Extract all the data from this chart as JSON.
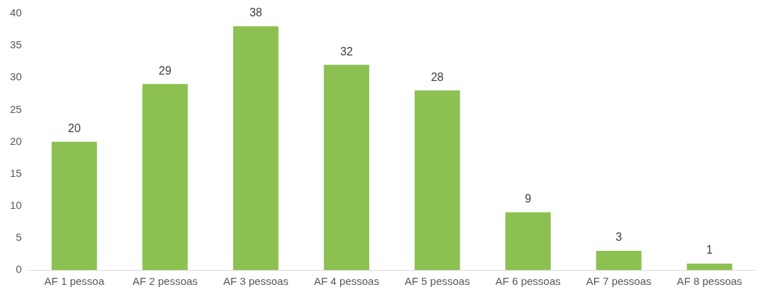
{
  "chart_data": {
    "type": "bar",
    "categories": [
      "AF 1 pessoa",
      "AF 2 pessoas",
      "AF 3 pessoas",
      "AF 4 pessoas",
      "AF 5 pessoas",
      "AF 6 pessoas",
      "AF 7 pessoas",
      "AF 8 pessoas"
    ],
    "values": [
      20,
      29,
      38,
      32,
      28,
      9,
      3,
      1
    ],
    "color": "#8cc152",
    "ylim": [
      0,
      40
    ],
    "yticks": [
      0,
      5,
      10,
      15,
      20,
      25,
      30,
      35,
      40
    ],
    "data_labels": true,
    "grid": false,
    "legend": false
  }
}
